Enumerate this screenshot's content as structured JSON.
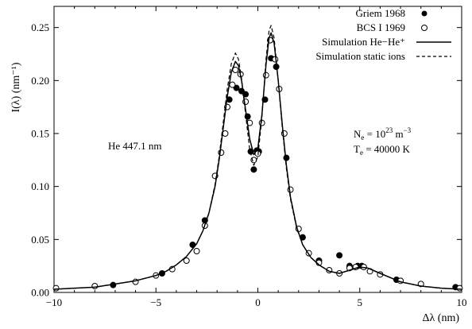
{
  "chart_data": {
    "type": "line",
    "xlabel": "Δλ (nm)",
    "ylabel": "I(λ) (nm⁻¹)",
    "xlim": [
      -10,
      10
    ],
    "ylim": [
      0,
      0.27
    ],
    "xticks": [
      -10,
      -5,
      0,
      5,
      10
    ],
    "yticks": [
      0.0,
      0.05,
      0.1,
      0.15,
      0.2,
      0.25
    ],
    "xtick_labels": [
      "−10",
      "−5",
      "0",
      "5",
      "10"
    ],
    "ytick_labels": [
      "0.00",
      "0.05",
      "0.10",
      "0.15",
      "0.20",
      "0.25"
    ],
    "grid": false,
    "legend_position": "top-right",
    "annotations": {
      "line_name": "He 447.1 nm",
      "ne_label": "N",
      "ne_sub": "e",
      "ne_eq": " = 10",
      "ne_exp": "23",
      "ne_unit": " m",
      "ne_unit_exp": "−3",
      "te_label": "T",
      "te_sub": "e",
      "te_eq": " = 40000 K"
    },
    "series": [
      {
        "name": "Griem 1968",
        "style": "filled-circle",
        "color": "#000000",
        "points": [
          [
            -7.1,
            0.007
          ],
          [
            -4.7,
            0.018
          ],
          [
            -3.2,
            0.045
          ],
          [
            -2.6,
            0.068
          ],
          [
            -1.4,
            0.182
          ],
          [
            -1.05,
            0.193
          ],
          [
            -0.8,
            0.19
          ],
          [
            -0.6,
            0.187
          ],
          [
            -0.5,
            0.166
          ],
          [
            -0.35,
            0.133
          ],
          [
            -0.2,
            0.116
          ],
          [
            -0.05,
            0.134
          ],
          [
            0.05,
            0.133
          ],
          [
            0.35,
            0.182
          ],
          [
            0.65,
            0.221
          ],
          [
            0.9,
            0.213
          ],
          [
            1.4,
            0.127
          ],
          [
            2.2,
            0.052
          ],
          [
            3.0,
            0.03
          ],
          [
            4.0,
            0.035
          ],
          [
            4.5,
            0.025
          ],
          [
            4.9,
            0.025
          ],
          [
            5.1,
            0.025
          ],
          [
            6.8,
            0.012
          ],
          [
            9.7,
            0.005
          ]
        ]
      },
      {
        "name": "BCS I 1969",
        "style": "open-circle",
        "color": "#000000",
        "points": [
          [
            -9.9,
            0.004
          ],
          [
            -8.0,
            0.006
          ],
          [
            -6.0,
            0.01
          ],
          [
            -5.0,
            0.016
          ],
          [
            -4.2,
            0.022
          ],
          [
            -3.5,
            0.03
          ],
          [
            -3.0,
            0.039
          ],
          [
            -2.6,
            0.063
          ],
          [
            -2.1,
            0.11
          ],
          [
            -1.8,
            0.132
          ],
          [
            -1.6,
            0.15
          ],
          [
            -1.5,
            0.175
          ],
          [
            -1.25,
            0.196
          ],
          [
            -1.1,
            0.21
          ],
          [
            -0.85,
            0.206
          ],
          [
            -0.6,
            0.18
          ],
          [
            -0.4,
            0.16
          ],
          [
            -0.2,
            0.125
          ],
          [
            0.0,
            0.131
          ],
          [
            0.2,
            0.16
          ],
          [
            0.4,
            0.205
          ],
          [
            0.6,
            0.238
          ],
          [
            0.85,
            0.22
          ],
          [
            1.05,
            0.192
          ],
          [
            1.3,
            0.15
          ],
          [
            1.6,
            0.097
          ],
          [
            2.0,
            0.06
          ],
          [
            2.5,
            0.037
          ],
          [
            3.0,
            0.028
          ],
          [
            3.5,
            0.021
          ],
          [
            4.0,
            0.018
          ],
          [
            4.5,
            0.023
          ],
          [
            4.8,
            0.024
          ],
          [
            5.2,
            0.024
          ],
          [
            5.5,
            0.02
          ],
          [
            6.0,
            0.017
          ],
          [
            7.0,
            0.011
          ],
          [
            8.0,
            0.008
          ],
          [
            9.9,
            0.004
          ]
        ]
      },
      {
        "name": "Simulation He−He⁺",
        "style": "solid",
        "color": "#000000",
        "points": [
          [
            -10,
            0.003
          ],
          [
            -9,
            0.004
          ],
          [
            -8,
            0.005
          ],
          [
            -7,
            0.008
          ],
          [
            -6,
            0.011
          ],
          [
            -5,
            0.016
          ],
          [
            -4.5,
            0.02
          ],
          [
            -4,
            0.026
          ],
          [
            -3.5,
            0.034
          ],
          [
            -3,
            0.046
          ],
          [
            -2.7,
            0.058
          ],
          [
            -2.4,
            0.075
          ],
          [
            -2.1,
            0.1
          ],
          [
            -1.9,
            0.125
          ],
          [
            -1.7,
            0.155
          ],
          [
            -1.5,
            0.185
          ],
          [
            -1.3,
            0.208
          ],
          [
            -1.1,
            0.218
          ],
          [
            -0.95,
            0.214
          ],
          [
            -0.8,
            0.2
          ],
          [
            -0.6,
            0.172
          ],
          [
            -0.4,
            0.145
          ],
          [
            -0.2,
            0.13
          ],
          [
            0.0,
            0.136
          ],
          [
            0.2,
            0.168
          ],
          [
            0.4,
            0.215
          ],
          [
            0.55,
            0.24
          ],
          [
            0.65,
            0.245
          ],
          [
            0.8,
            0.235
          ],
          [
            1.0,
            0.2
          ],
          [
            1.2,
            0.158
          ],
          [
            1.4,
            0.12
          ],
          [
            1.6,
            0.09
          ],
          [
            1.9,
            0.062
          ],
          [
            2.2,
            0.045
          ],
          [
            2.6,
            0.033
          ],
          [
            3.0,
            0.026
          ],
          [
            3.5,
            0.02
          ],
          [
            4.0,
            0.018
          ],
          [
            4.5,
            0.021
          ],
          [
            5.0,
            0.024
          ],
          [
            5.4,
            0.023
          ],
          [
            6.0,
            0.018
          ],
          [
            7.0,
            0.01
          ],
          [
            8.0,
            0.006
          ],
          [
            9.0,
            0.004
          ],
          [
            10.0,
            0.003
          ]
        ]
      },
      {
        "name": "Simulation static ions",
        "style": "dashed",
        "color": "#000000",
        "points": [
          [
            -10,
            0.003
          ],
          [
            -9,
            0.004
          ],
          [
            -8,
            0.005
          ],
          [
            -7,
            0.008
          ],
          [
            -6,
            0.011
          ],
          [
            -5,
            0.016
          ],
          [
            -4.5,
            0.02
          ],
          [
            -4,
            0.026
          ],
          [
            -3.5,
            0.034
          ],
          [
            -3,
            0.046
          ],
          [
            -2.7,
            0.058
          ],
          [
            -2.4,
            0.075
          ],
          [
            -2.1,
            0.102
          ],
          [
            -1.9,
            0.128
          ],
          [
            -1.7,
            0.16
          ],
          [
            -1.5,
            0.192
          ],
          [
            -1.3,
            0.216
          ],
          [
            -1.1,
            0.226
          ],
          [
            -0.95,
            0.22
          ],
          [
            -0.8,
            0.202
          ],
          [
            -0.6,
            0.168
          ],
          [
            -0.4,
            0.135
          ],
          [
            -0.2,
            0.12
          ],
          [
            0.0,
            0.128
          ],
          [
            0.2,
            0.165
          ],
          [
            0.4,
            0.22
          ],
          [
            0.55,
            0.247
          ],
          [
            0.65,
            0.252
          ],
          [
            0.8,
            0.24
          ],
          [
            1.0,
            0.2
          ],
          [
            1.2,
            0.155
          ],
          [
            1.4,
            0.117
          ],
          [
            1.6,
            0.088
          ],
          [
            1.9,
            0.061
          ],
          [
            2.2,
            0.045
          ],
          [
            2.6,
            0.033
          ],
          [
            3.0,
            0.026
          ],
          [
            3.5,
            0.02
          ],
          [
            4.0,
            0.018
          ],
          [
            4.5,
            0.021
          ],
          [
            5.0,
            0.024
          ],
          [
            5.4,
            0.023
          ],
          [
            6.0,
            0.018
          ],
          [
            7.0,
            0.01
          ],
          [
            8.0,
            0.006
          ],
          [
            9.0,
            0.004
          ],
          [
            10.0,
            0.003
          ]
        ]
      }
    ]
  }
}
